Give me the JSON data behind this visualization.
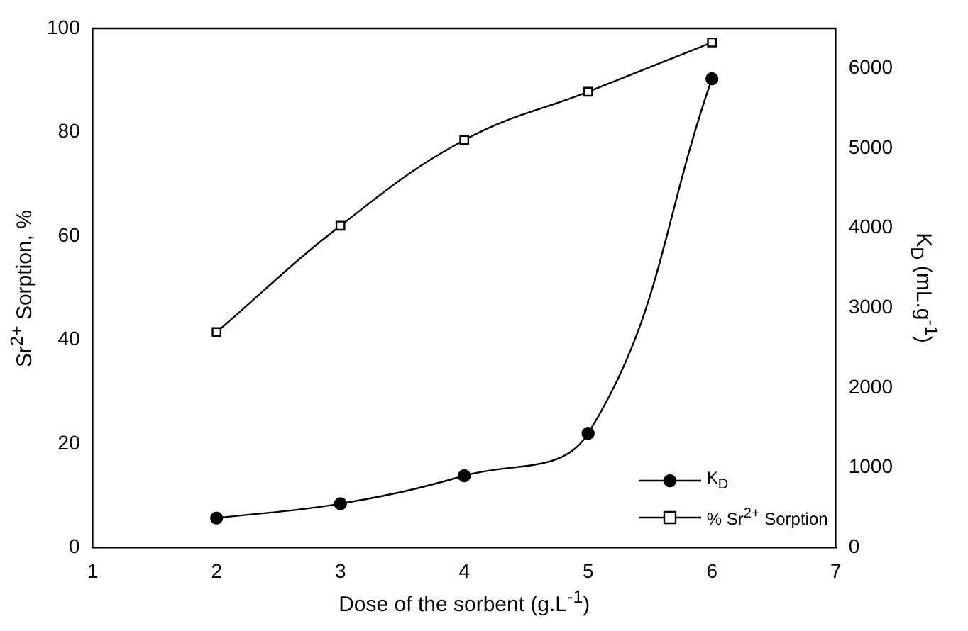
{
  "chart_data": {
    "type": "line",
    "xlabel": "Dose of the sorbent (g.L$^{-1}$)",
    "ylabel": "Sr$^{2+}$ Sorption, %",
    "y2label": "K$_{D}$ (mL.g$^{-1}$)",
    "x": [
      2,
      3,
      4,
      5,
      6
    ],
    "series": [
      {
        "name": "K$_{D}$",
        "color": "#000000",
        "axis": "y2",
        "marker": "circle",
        "values": [
          370,
          550,
          900,
          1430,
          5870
        ]
      },
      {
        "name": "% Sr$^{2+}$ Sorption",
        "color": "#000000",
        "marker": "square",
        "values": [
          41.5,
          62,
          78.5,
          87.8,
          97.3
        ]
      }
    ],
    "xlim": [
      1,
      7
    ],
    "xticks": [
      1,
      2,
      3,
      4,
      5,
      6,
      7
    ],
    "ylim": [
      0,
      100
    ],
    "yticks": [
      0,
      20,
      40,
      60,
      80,
      100
    ],
    "y2lim": [
      0,
      6500
    ],
    "y2ticks": [
      0,
      1000,
      2000,
      3000,
      4000,
      5000,
      6000
    ],
    "grid": false,
    "legend": "bottom right",
    "line_style": "solid"
  }
}
